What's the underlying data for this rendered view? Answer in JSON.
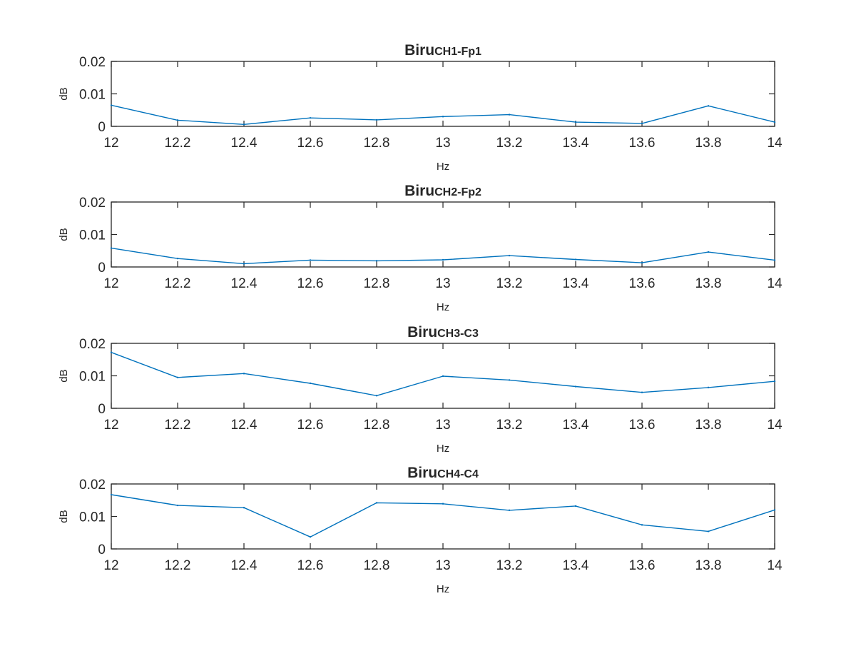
{
  "figure": {
    "background": "#ffffff",
    "axes_color": "#262626",
    "line_color": "#0072BD"
  },
  "chart_data": [
    {
      "type": "line",
      "title_main": "Biru",
      "title_sub": "CH1-Fp1",
      "xlabel": "Hz",
      "ylabel": "dB",
      "xlim": [
        12,
        14
      ],
      "ylim": [
        0,
        0.02
      ],
      "xticks": [
        "12",
        "12.2",
        "12.4",
        "12.6",
        "12.8",
        "13",
        "13.2",
        "13.4",
        "13.6",
        "13.8",
        "14"
      ],
      "yticks": [
        "0",
        "0.01",
        "0.02"
      ],
      "grid": false,
      "x": [
        12,
        12.2,
        12.4,
        12.6,
        12.8,
        13,
        13.2,
        13.4,
        13.6,
        13.8,
        14
      ],
      "y": [
        0.0065,
        0.0019,
        0.0006,
        0.0026,
        0.002,
        0.003,
        0.0036,
        0.0013,
        0.0009,
        0.0063,
        0.0013
      ]
    },
    {
      "type": "line",
      "title_main": "Biru",
      "title_sub": "CH2-Fp2",
      "xlabel": "Hz",
      "ylabel": "dB",
      "xlim": [
        12,
        14
      ],
      "ylim": [
        0,
        0.02
      ],
      "xticks": [
        "12",
        "12.2",
        "12.4",
        "12.6",
        "12.8",
        "13",
        "13.2",
        "13.4",
        "13.6",
        "13.8",
        "14"
      ],
      "yticks": [
        "0",
        "0.01",
        "0.02"
      ],
      "grid": false,
      "x": [
        12,
        12.2,
        12.4,
        12.6,
        12.8,
        13,
        13.2,
        13.4,
        13.6,
        13.8,
        14
      ],
      "y": [
        0.0058,
        0.0026,
        0.001,
        0.0021,
        0.0019,
        0.0022,
        0.0035,
        0.0023,
        0.0013,
        0.0046,
        0.0021
      ]
    },
    {
      "type": "line",
      "title_main": "Biru",
      "title_sub": "CH3-C3",
      "xlabel": "Hz",
      "ylabel": "dB",
      "xlim": [
        12,
        14
      ],
      "ylim": [
        0,
        0.02
      ],
      "xticks": [
        "12",
        "12.2",
        "12.4",
        "12.6",
        "12.8",
        "13",
        "13.2",
        "13.4",
        "13.6",
        "13.8",
        "14"
      ],
      "yticks": [
        "0",
        "0.01",
        "0.02"
      ],
      "grid": false,
      "x": [
        12,
        12.2,
        12.4,
        12.6,
        12.8,
        13,
        13.2,
        13.4,
        13.6,
        13.8,
        14
      ],
      "y": [
        0.0172,
        0.0095,
        0.0107,
        0.0077,
        0.0039,
        0.0099,
        0.0087,
        0.0067,
        0.0049,
        0.0064,
        0.0083
      ]
    },
    {
      "type": "line",
      "title_main": "Biru",
      "title_sub": "CH4-C4",
      "xlabel": "Hz",
      "ylabel": "dB",
      "xlim": [
        12,
        14
      ],
      "ylim": [
        0,
        0.02
      ],
      "xticks": [
        "12",
        "12.2",
        "12.4",
        "12.6",
        "12.8",
        "13",
        "13.2",
        "13.4",
        "13.6",
        "13.8",
        "14"
      ],
      "yticks": [
        "0",
        "0.01",
        "0.02"
      ],
      "grid": false,
      "x": [
        12,
        12.2,
        12.4,
        12.6,
        12.8,
        13,
        13.2,
        13.4,
        13.6,
        13.8,
        14
      ],
      "y": [
        0.0167,
        0.0134,
        0.0127,
        0.0037,
        0.0142,
        0.0139,
        0.0119,
        0.0132,
        0.0074,
        0.0054,
        0.012
      ]
    }
  ]
}
